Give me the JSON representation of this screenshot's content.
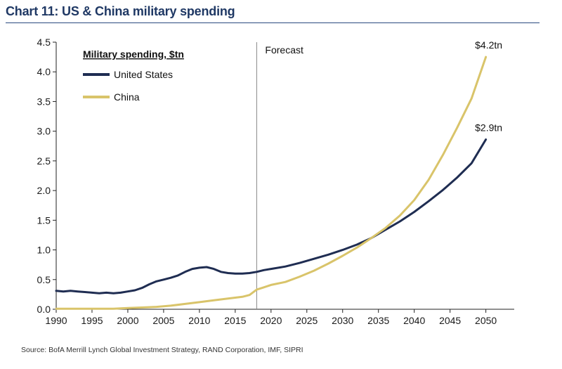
{
  "header": {
    "title": "Chart 11: US & China military spending"
  },
  "chart_data": {
    "type": "line",
    "title": "Chart 11: US & China military spending",
    "legend_title": "Military spending, $tn",
    "legend_position": "top-left",
    "xlim": [
      1990,
      2052
    ],
    "ylim": [
      0,
      4.5
    ],
    "xticks": [
      "1990",
      "1995",
      "2000",
      "2005",
      "2010",
      "2015",
      "2020",
      "2025",
      "2030",
      "2035",
      "2040",
      "2045",
      "2050"
    ],
    "yticks": [
      "0.0",
      "0.5",
      "1.0",
      "1.5",
      "2.0",
      "2.5",
      "3.0",
      "3.5",
      "4.0",
      "4.5"
    ],
    "grid": false,
    "forecast_start": 2018,
    "forecast_label": "Forecast",
    "series": [
      {
        "name": "United States",
        "color": "#1f2d52",
        "x": [
          1990,
          1991,
          1992,
          1993,
          1994,
          1995,
          1996,
          1997,
          1998,
          1999,
          2000,
          2001,
          2002,
          2003,
          2004,
          2005,
          2006,
          2007,
          2008,
          2009,
          2010,
          2011,
          2012,
          2013,
          2014,
          2015,
          2016,
          2017,
          2018,
          2019,
          2020,
          2022,
          2024,
          2026,
          2028,
          2030,
          2032,
          2034,
          2036,
          2038,
          2040,
          2042,
          2044,
          2046,
          2048,
          2050
        ],
        "values": [
          0.31,
          0.3,
          0.31,
          0.3,
          0.29,
          0.28,
          0.27,
          0.28,
          0.27,
          0.28,
          0.3,
          0.32,
          0.36,
          0.42,
          0.47,
          0.5,
          0.53,
          0.57,
          0.63,
          0.68,
          0.7,
          0.71,
          0.68,
          0.63,
          0.61,
          0.6,
          0.6,
          0.61,
          0.63,
          0.66,
          0.68,
          0.72,
          0.78,
          0.85,
          0.92,
          1.0,
          1.09,
          1.2,
          1.34,
          1.48,
          1.64,
          1.82,
          2.01,
          2.22,
          2.46,
          2.86
        ]
      },
      {
        "name": "China",
        "color": "#d9c46a",
        "x": [
          1990,
          1994,
          1998,
          2000,
          2002,
          2004,
          2006,
          2008,
          2010,
          2012,
          2014,
          2016,
          2017,
          2018,
          2019,
          2020,
          2022,
          2024,
          2026,
          2028,
          2030,
          2032,
          2034,
          2036,
          2038,
          2040,
          2042,
          2044,
          2046,
          2048,
          2050
        ],
        "values": [
          0.01,
          0.01,
          0.01,
          0.02,
          0.03,
          0.04,
          0.06,
          0.09,
          0.12,
          0.15,
          0.18,
          0.21,
          0.24,
          0.33,
          0.37,
          0.41,
          0.46,
          0.55,
          0.65,
          0.77,
          0.9,
          1.04,
          1.2,
          1.37,
          1.58,
          1.84,
          2.18,
          2.6,
          3.06,
          3.55,
          4.25
        ]
      }
    ],
    "annotations": [
      {
        "text": "$4.2tn",
        "x": 2050,
        "y": 4.25
      },
      {
        "text": "$2.9tn",
        "x": 2050,
        "y": 2.86
      }
    ]
  },
  "source": "Source: BofA Merrill Lynch Global Investment Strategy, RAND Corporation, IMF, SIPRI"
}
